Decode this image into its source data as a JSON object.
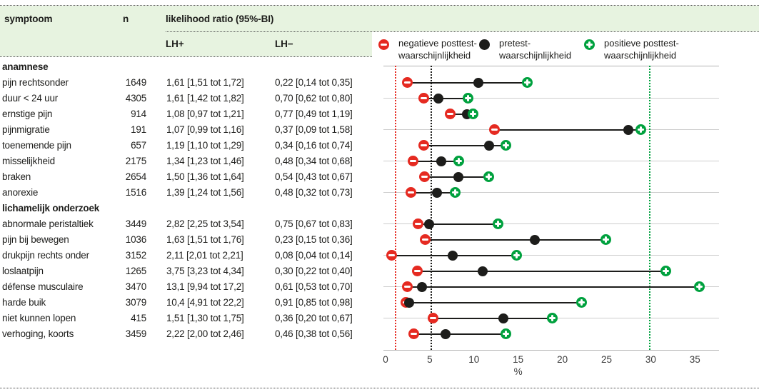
{
  "colors": {
    "negative_red": "#e52a21",
    "positive_green": "#00a13e",
    "pretest_black": "#1d1d1b",
    "header_bg": "#e7f3e0",
    "gridline_gray": "#cdcdcd"
  },
  "table": {
    "headers": {
      "symptom": "symptoom",
      "n": "n",
      "lr": "likelihood ratio (95%-BI)",
      "lh_plus": "LH+",
      "lh_minus": "LH−"
    },
    "rows": [
      {
        "type": "section",
        "label": "anamnese"
      },
      {
        "type": "item",
        "label": "pijn rechtsonder",
        "n": "1649",
        "lh_plus": "1,61 [1,51 tot 1,72]",
        "lh_minus": "0,22 [0,14 tot 0,35]",
        "gridline": false
      },
      {
        "type": "item",
        "label": "duur < 24 uur",
        "n": "4305",
        "lh_plus": "1,61 [1,42 tot 1,82]",
        "lh_minus": "0,70 [0,62 tot 0,80]",
        "gridline": true
      },
      {
        "type": "item",
        "label": "ernstige pijn",
        "n": "914",
        "lh_plus": "1,08 [0,97 tot 1,21]",
        "lh_minus": "0,77 [0,49 tot 1,19]",
        "gridline": false
      },
      {
        "type": "item",
        "label": "pijnmigratie",
        "n": "191",
        "lh_plus": "1,07 [0,99 tot 1,16]",
        "lh_minus": "0,37 [0,09 tot 1,58]",
        "gridline": true
      },
      {
        "type": "item",
        "label": "toenemende pijn",
        "n": "657",
        "lh_plus": "1,19 [1,10 tot 1,29]",
        "lh_minus": "0,34 [0,16 tot 0,74]",
        "gridline": false
      },
      {
        "type": "item",
        "label": "misselijkheid",
        "n": "2175",
        "lh_plus": "1,34 [1,23 tot 1,46]",
        "lh_minus": "0,48 [0,34 tot 0,68]",
        "gridline": true
      },
      {
        "type": "item",
        "label": "braken",
        "n": "2654",
        "lh_plus": "1,50 [1,36 tot 1,64]",
        "lh_minus": "0,54 [0,43 tot 0,67]",
        "gridline": false
      },
      {
        "type": "item",
        "label": "anorexie",
        "n": "1516",
        "lh_plus": "1,39 [1,24 tot 1,56]",
        "lh_minus": "0,48 [0,32 tot 0,73]",
        "gridline": true
      },
      {
        "type": "section",
        "label": "lichamelijk onderzoek"
      },
      {
        "type": "item",
        "label": "abnormale peristaltiek",
        "n": "3449",
        "lh_plus": "2,82 [2,25 tot 3,54]",
        "lh_minus": "0,75 [0,67 tot 0,83]",
        "gridline": true
      },
      {
        "type": "item",
        "label": "pijn bij bewegen",
        "n": "1036",
        "lh_plus": "1,63 [1,51 tot 1,76]",
        "lh_minus": "0,23 [0,15 tot 0,36]",
        "gridline": false
      },
      {
        "type": "item",
        "label": "drukpijn rechts onder",
        "n": "3152",
        "lh_plus": "2,11 [2,01 tot 2,21]",
        "lh_minus": "0,08 [0,04 tot 0,14]",
        "gridline": true
      },
      {
        "type": "item",
        "label": "loslaatpijn",
        "n": "1265",
        "lh_plus": "3,75 [3,23 tot 4,34]",
        "lh_minus": "0,30 [0,22 tot 0,40]",
        "gridline": false
      },
      {
        "type": "item",
        "label": "défense musculaire",
        "n": "3470",
        "lh_plus": "13,1 [9,94 tot 17,2]",
        "lh_minus": "0,61 [0,53 tot 0,70]",
        "gridline": true
      },
      {
        "type": "item",
        "label": "harde buik",
        "n": "3079",
        "lh_plus": "10,4 [4,91 tot 22,2]",
        "lh_minus": "0,91 [0,85 tot 0,98]",
        "gridline": false
      },
      {
        "type": "item",
        "label": "niet kunnen lopen",
        "n": "415",
        "lh_plus": "1,51 [1,30 tot 1,75]",
        "lh_minus": "0,36 [0,20 tot 0,67]",
        "gridline": true
      },
      {
        "type": "item",
        "label": "verhoging, koorts",
        "n": "3459",
        "lh_plus": "2,22 [2,00 tot 2,46]",
        "lh_minus": "0,46 [0,38 tot 0,56]",
        "gridline": false
      }
    ]
  },
  "legend": {
    "items": [
      {
        "marker": "minus-circle",
        "line1": "negatieve posttest-",
        "line2": "waarschijnlijkheid"
      },
      {
        "marker": "black-dot",
        "line1": "pretest-",
        "line2": "waarschijnlijkheid"
      },
      {
        "marker": "plus-circle",
        "line1": "positieve posttest-",
        "line2": "waarschijnlijkheid"
      }
    ]
  },
  "chart_data": {
    "type": "scatter",
    "variant": "dumbbell-dot-plot",
    "xlabel": "%",
    "x_ticks": [
      0,
      5,
      10,
      15,
      20,
      25,
      30,
      35
    ],
    "xlim": [
      0,
      37.8
    ],
    "grid": "alternate-row-horizontal-lines",
    "legend_position": "top",
    "categories": [
      "pijn rechtsonder",
      "duur < 24 uur",
      "ernstige pijn",
      "pijnmigratie",
      "toenemende pijn",
      "misselijkheid",
      "braken",
      "anorexie",
      "abnormale peristaltiek",
      "pijn bij bewegen",
      "drukpijn rechts onder",
      "loslaatpijn",
      "défense musculaire",
      "harde buik",
      "niet kunnen lopen",
      "verhoging, koorts"
    ],
    "series": [
      {
        "name": "negatieve posttestwaarschijnlijkheid",
        "color": "#e52a21",
        "marker": "minus-circle",
        "values": [
          2.5,
          4.3,
          7.3,
          12.3,
          4.3,
          3.1,
          4.4,
          2.9,
          3.7,
          4.5,
          0.7,
          3.6,
          2.5,
          2.3,
          5.4,
          3.2
        ]
      },
      {
        "name": "pretestwaarschijnlijkheid",
        "color": "#1d1d1b",
        "marker": "filled-dot",
        "values": [
          10.5,
          6.0,
          9.2,
          27.5,
          11.7,
          6.3,
          8.2,
          5.8,
          4.9,
          16.9,
          7.6,
          11.0,
          4.1,
          2.7,
          13.3,
          6.8
        ]
      },
      {
        "name": "positieve posttestwaarschijnlijkheid",
        "color": "#00a13e",
        "marker": "plus-circle",
        "values": [
          16.0,
          9.3,
          9.9,
          28.9,
          13.6,
          8.3,
          11.7,
          7.9,
          12.7,
          24.9,
          14.8,
          31.7,
          35.5,
          22.2,
          18.9,
          13.6
        ]
      }
    ],
    "reference_lines": [
      {
        "x": 1.1,
        "color": "#e52a21",
        "style": "dotted"
      },
      {
        "x": 5.15,
        "color": "#1d1d1b",
        "style": "dotted"
      },
      {
        "x": 29.9,
        "color": "#00a13e",
        "style": "dotted"
      }
    ]
  }
}
